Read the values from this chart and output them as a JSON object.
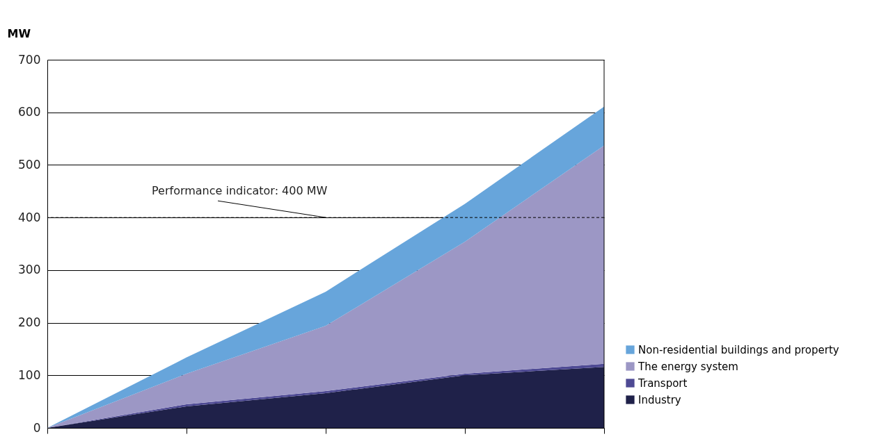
{
  "chart_data": {
    "type": "area",
    "stacked": true,
    "ylabel": "MW",
    "categories": [
      null,
      null,
      null,
      null,
      null
    ],
    "series": [
      {
        "name": "Industry",
        "color": "#1f2149",
        "values": [
          0,
          41,
          66,
          100,
          116
        ]
      },
      {
        "name": "Transport",
        "color": "#4e4a94",
        "values": [
          0,
          4,
          4,
          3,
          6
        ]
      },
      {
        "name": "The energy system",
        "color": "#9c97c5",
        "values": [
          0,
          58,
          124,
          251,
          415
        ]
      },
      {
        "name": "Non-residential buildings and property",
        "color": "#67a5db",
        "values": [
          0,
          31,
          65,
          72,
          74
        ]
      }
    ],
    "ylim": [
      0,
      700
    ],
    "yticks": [
      0,
      100,
      200,
      300,
      400,
      500,
      600,
      700
    ],
    "ref_lines": [
      {
        "axis": "y",
        "value": 400,
        "label": "Performance indicator: 400 MW",
        "line_style": "dashed",
        "color": "#000000"
      }
    ],
    "grid": "y",
    "legend": "bottom right",
    "tick_labels": "y"
  }
}
